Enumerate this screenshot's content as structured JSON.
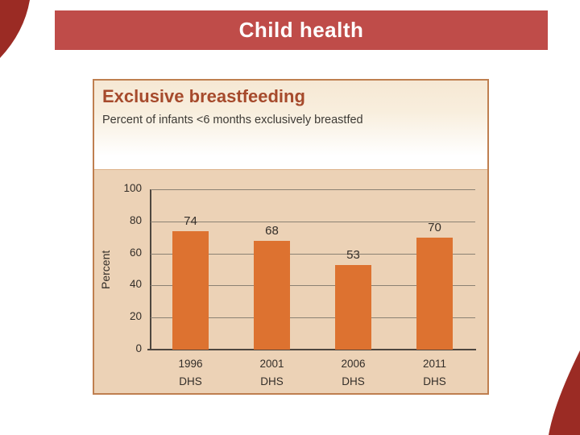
{
  "slide": {
    "title": "Child health"
  },
  "panel": {
    "title": "Exclusive breastfeeding",
    "subtitle": "Percent of infants <6 months exclusively breastfed"
  },
  "chart_data": {
    "type": "bar",
    "categories": [
      "1996 DHS",
      "2001 DHS",
      "2006 DHS",
      "2011 DHS"
    ],
    "values": [
      74,
      68,
      53,
      70
    ],
    "data_labels": [
      "74",
      "68",
      "53",
      "70"
    ],
    "title": "Exclusive breastfeeding",
    "subtitle": "Percent of infants <6 months exclusively breastfed",
    "xlabel": "",
    "ylabel": "Percent",
    "ylim": [
      0,
      100
    ],
    "yticks": [
      0,
      20,
      40,
      60,
      80,
      100
    ],
    "grid": true,
    "legend": "none",
    "bar_color": "#dd7230",
    "plot_bg": "#ecd2b6"
  },
  "colors": {
    "banner_bg": "#bf4c49",
    "banner_text": "#ffffff",
    "corner_accent": "#9b2b24",
    "panel_border": "#bf7f50",
    "panel_header_top": "#f6e8d4",
    "chart_bg": "#ecd2b6",
    "bar": "#dd7230",
    "gridline": "#8b8173",
    "axis": "#4d463f",
    "chart_title_text": "#a64a2c",
    "body_text": "#332e29"
  }
}
